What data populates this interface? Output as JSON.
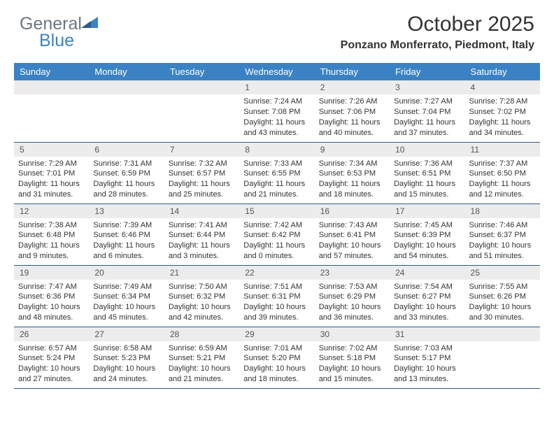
{
  "brand": {
    "word1": "General",
    "word2": "Blue"
  },
  "title": "October 2025",
  "location": "Ponzano Monferrato, Piedmont, Italy",
  "colors": {
    "header_bg": "#3b82c4",
    "header_text": "#ffffff",
    "daynum_bg": "#ececec",
    "row_border": "#2d5a8a",
    "logo_gray": "#6c7680",
    "logo_blue": "#3b82c4"
  },
  "weekdays": [
    "Sunday",
    "Monday",
    "Tuesday",
    "Wednesday",
    "Thursday",
    "Friday",
    "Saturday"
  ],
  "weeks": [
    [
      {
        "day": "",
        "sunrise": "",
        "sunset": "",
        "daylight": ""
      },
      {
        "day": "",
        "sunrise": "",
        "sunset": "",
        "daylight": ""
      },
      {
        "day": "",
        "sunrise": "",
        "sunset": "",
        "daylight": ""
      },
      {
        "day": "1",
        "sunrise": "Sunrise: 7:24 AM",
        "sunset": "Sunset: 7:08 PM",
        "daylight": "Daylight: 11 hours and 43 minutes."
      },
      {
        "day": "2",
        "sunrise": "Sunrise: 7:26 AM",
        "sunset": "Sunset: 7:06 PM",
        "daylight": "Daylight: 11 hours and 40 minutes."
      },
      {
        "day": "3",
        "sunrise": "Sunrise: 7:27 AM",
        "sunset": "Sunset: 7:04 PM",
        "daylight": "Daylight: 11 hours and 37 minutes."
      },
      {
        "day": "4",
        "sunrise": "Sunrise: 7:28 AM",
        "sunset": "Sunset: 7:02 PM",
        "daylight": "Daylight: 11 hours and 34 minutes."
      }
    ],
    [
      {
        "day": "5",
        "sunrise": "Sunrise: 7:29 AM",
        "sunset": "Sunset: 7:01 PM",
        "daylight": "Daylight: 11 hours and 31 minutes."
      },
      {
        "day": "6",
        "sunrise": "Sunrise: 7:31 AM",
        "sunset": "Sunset: 6:59 PM",
        "daylight": "Daylight: 11 hours and 28 minutes."
      },
      {
        "day": "7",
        "sunrise": "Sunrise: 7:32 AM",
        "sunset": "Sunset: 6:57 PM",
        "daylight": "Daylight: 11 hours and 25 minutes."
      },
      {
        "day": "8",
        "sunrise": "Sunrise: 7:33 AM",
        "sunset": "Sunset: 6:55 PM",
        "daylight": "Daylight: 11 hours and 21 minutes."
      },
      {
        "day": "9",
        "sunrise": "Sunrise: 7:34 AM",
        "sunset": "Sunset: 6:53 PM",
        "daylight": "Daylight: 11 hours and 18 minutes."
      },
      {
        "day": "10",
        "sunrise": "Sunrise: 7:36 AM",
        "sunset": "Sunset: 6:51 PM",
        "daylight": "Daylight: 11 hours and 15 minutes."
      },
      {
        "day": "11",
        "sunrise": "Sunrise: 7:37 AM",
        "sunset": "Sunset: 6:50 PM",
        "daylight": "Daylight: 11 hours and 12 minutes."
      }
    ],
    [
      {
        "day": "12",
        "sunrise": "Sunrise: 7:38 AM",
        "sunset": "Sunset: 6:48 PM",
        "daylight": "Daylight: 11 hours and 9 minutes."
      },
      {
        "day": "13",
        "sunrise": "Sunrise: 7:39 AM",
        "sunset": "Sunset: 6:46 PM",
        "daylight": "Daylight: 11 hours and 6 minutes."
      },
      {
        "day": "14",
        "sunrise": "Sunrise: 7:41 AM",
        "sunset": "Sunset: 6:44 PM",
        "daylight": "Daylight: 11 hours and 3 minutes."
      },
      {
        "day": "15",
        "sunrise": "Sunrise: 7:42 AM",
        "sunset": "Sunset: 6:42 PM",
        "daylight": "Daylight: 11 hours and 0 minutes."
      },
      {
        "day": "16",
        "sunrise": "Sunrise: 7:43 AM",
        "sunset": "Sunset: 6:41 PM",
        "daylight": "Daylight: 10 hours and 57 minutes."
      },
      {
        "day": "17",
        "sunrise": "Sunrise: 7:45 AM",
        "sunset": "Sunset: 6:39 PM",
        "daylight": "Daylight: 10 hours and 54 minutes."
      },
      {
        "day": "18",
        "sunrise": "Sunrise: 7:46 AM",
        "sunset": "Sunset: 6:37 PM",
        "daylight": "Daylight: 10 hours and 51 minutes."
      }
    ],
    [
      {
        "day": "19",
        "sunrise": "Sunrise: 7:47 AM",
        "sunset": "Sunset: 6:36 PM",
        "daylight": "Daylight: 10 hours and 48 minutes."
      },
      {
        "day": "20",
        "sunrise": "Sunrise: 7:49 AM",
        "sunset": "Sunset: 6:34 PM",
        "daylight": "Daylight: 10 hours and 45 minutes."
      },
      {
        "day": "21",
        "sunrise": "Sunrise: 7:50 AM",
        "sunset": "Sunset: 6:32 PM",
        "daylight": "Daylight: 10 hours and 42 minutes."
      },
      {
        "day": "22",
        "sunrise": "Sunrise: 7:51 AM",
        "sunset": "Sunset: 6:31 PM",
        "daylight": "Daylight: 10 hours and 39 minutes."
      },
      {
        "day": "23",
        "sunrise": "Sunrise: 7:53 AM",
        "sunset": "Sunset: 6:29 PM",
        "daylight": "Daylight: 10 hours and 36 minutes."
      },
      {
        "day": "24",
        "sunrise": "Sunrise: 7:54 AM",
        "sunset": "Sunset: 6:27 PM",
        "daylight": "Daylight: 10 hours and 33 minutes."
      },
      {
        "day": "25",
        "sunrise": "Sunrise: 7:55 AM",
        "sunset": "Sunset: 6:26 PM",
        "daylight": "Daylight: 10 hours and 30 minutes."
      }
    ],
    [
      {
        "day": "26",
        "sunrise": "Sunrise: 6:57 AM",
        "sunset": "Sunset: 5:24 PM",
        "daylight": "Daylight: 10 hours and 27 minutes."
      },
      {
        "day": "27",
        "sunrise": "Sunrise: 6:58 AM",
        "sunset": "Sunset: 5:23 PM",
        "daylight": "Daylight: 10 hours and 24 minutes."
      },
      {
        "day": "28",
        "sunrise": "Sunrise: 6:59 AM",
        "sunset": "Sunset: 5:21 PM",
        "daylight": "Daylight: 10 hours and 21 minutes."
      },
      {
        "day": "29",
        "sunrise": "Sunrise: 7:01 AM",
        "sunset": "Sunset: 5:20 PM",
        "daylight": "Daylight: 10 hours and 18 minutes."
      },
      {
        "day": "30",
        "sunrise": "Sunrise: 7:02 AM",
        "sunset": "Sunset: 5:18 PM",
        "daylight": "Daylight: 10 hours and 15 minutes."
      },
      {
        "day": "31",
        "sunrise": "Sunrise: 7:03 AM",
        "sunset": "Sunset: 5:17 PM",
        "daylight": "Daylight: 10 hours and 13 minutes."
      },
      {
        "day": "",
        "sunrise": "",
        "sunset": "",
        "daylight": ""
      }
    ]
  ]
}
